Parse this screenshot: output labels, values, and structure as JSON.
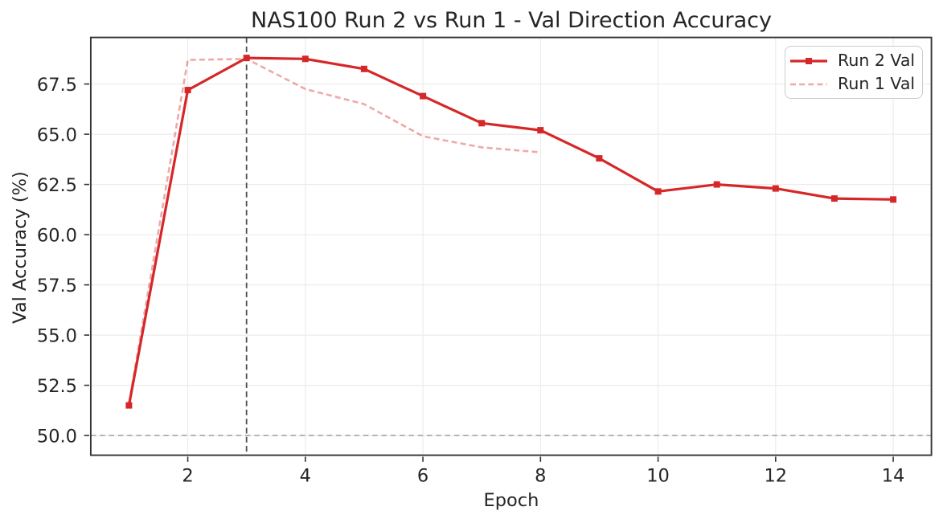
{
  "chart_data": {
    "type": "line",
    "title": "NAS100 Run 2 vs Run 1 - Val Direction Accuracy",
    "xlabel": "Epoch",
    "ylabel": "Val Accuracy (%)",
    "xlim": [
      0.35,
      14.65
    ],
    "ylim": [
      49.02,
      69.82
    ],
    "x_ticks": [
      2,
      4,
      6,
      8,
      10,
      12,
      14
    ],
    "y_ticks": [
      50.0,
      52.5,
      55.0,
      57.5,
      60.0,
      62.5,
      65.0,
      67.5
    ],
    "grid": true,
    "legend_position": "upper right",
    "colors": {
      "run2": "#d62728",
      "run1": "#d62728",
      "grid": "#ececec",
      "spine": "#333333",
      "text": "#262626",
      "vline": "#4f4f4f",
      "hline": "#aaaaaa"
    },
    "series": [
      {
        "name": "Run 2 Val",
        "color": "#d62728",
        "opacity": 1.0,
        "style": "solid",
        "marker": "square",
        "x": [
          1,
          2,
          3,
          4,
          5,
          6,
          7,
          8,
          9,
          10,
          11,
          12,
          13,
          14
        ],
        "values": [
          51.5,
          67.2,
          68.8,
          68.75,
          68.25,
          66.9,
          65.55,
          65.2,
          63.8,
          62.15,
          62.5,
          62.3,
          61.8,
          61.75
        ]
      },
      {
        "name": "Run 1 Val",
        "color": "#d62728",
        "opacity": 0.4,
        "style": "dashed",
        "marker": "none",
        "x": [
          1,
          2,
          3,
          4,
          5,
          6,
          7,
          8
        ],
        "values": [
          51.6,
          68.7,
          68.75,
          67.25,
          66.5,
          64.9,
          64.35,
          64.1
        ]
      }
    ],
    "reference_lines": [
      {
        "type": "vline",
        "x": 3,
        "color": "#4f4f4f",
        "style": "dashed"
      },
      {
        "type": "hline",
        "y": 50.0,
        "color": "#aaaaaa",
        "style": "dashed"
      }
    ]
  }
}
